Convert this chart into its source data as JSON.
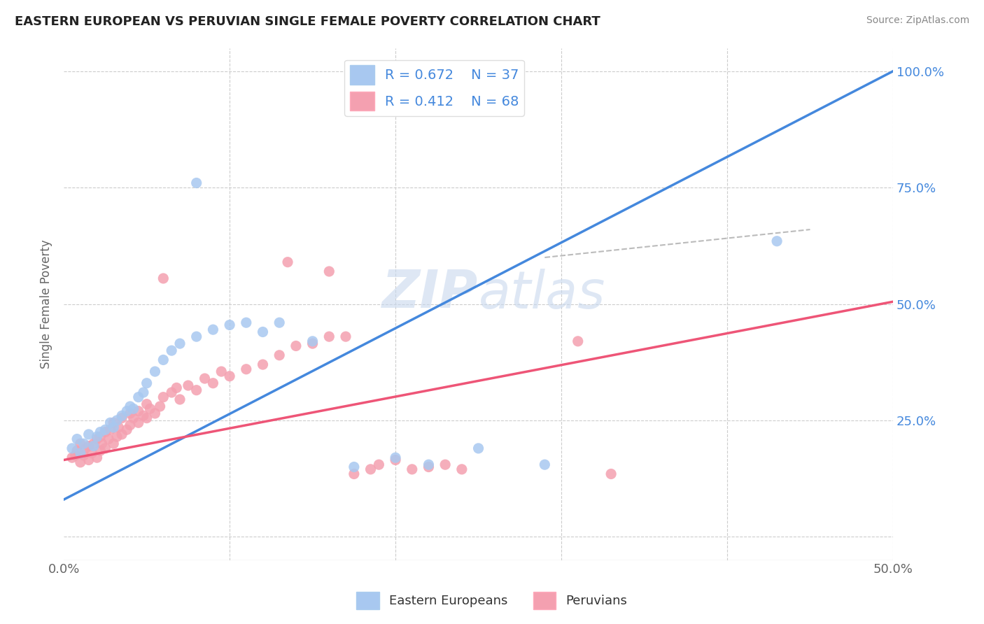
{
  "title": "EASTERN EUROPEAN VS PERUVIAN SINGLE FEMALE POVERTY CORRELATION CHART",
  "source": "Source: ZipAtlas.com",
  "ylabel": "Single Female Poverty",
  "xlim": [
    0.0,
    0.5
  ],
  "ylim": [
    -0.05,
    1.05
  ],
  "xticks": [
    0.0,
    0.1,
    0.2,
    0.3,
    0.4,
    0.5
  ],
  "xticklabels": [
    "0.0%",
    "",
    "",
    "",
    "",
    "50.0%"
  ],
  "yticks": [
    0.0,
    0.25,
    0.5,
    0.75,
    1.0
  ],
  "yticklabels": [
    "",
    "25.0%",
    "50.0%",
    "75.0%",
    "100.0%"
  ],
  "watermark": "ZIPatlas",
  "blue_color": "#A8C8F0",
  "pink_color": "#F4A0B0",
  "line_blue": "#4488DD",
  "line_pink": "#EE5577",
  "line_dashed_color": "#BBBBBB",
  "blue_scatter": [
    [
      0.005,
      0.19
    ],
    [
      0.008,
      0.21
    ],
    [
      0.01,
      0.18
    ],
    [
      0.012,
      0.2
    ],
    [
      0.015,
      0.22
    ],
    [
      0.018,
      0.195
    ],
    [
      0.02,
      0.215
    ],
    [
      0.022,
      0.225
    ],
    [
      0.025,
      0.23
    ],
    [
      0.028,
      0.245
    ],
    [
      0.03,
      0.235
    ],
    [
      0.032,
      0.25
    ],
    [
      0.035,
      0.26
    ],
    [
      0.038,
      0.27
    ],
    [
      0.04,
      0.28
    ],
    [
      0.042,
      0.275
    ],
    [
      0.045,
      0.3
    ],
    [
      0.048,
      0.31
    ],
    [
      0.05,
      0.33
    ],
    [
      0.055,
      0.355
    ],
    [
      0.06,
      0.38
    ],
    [
      0.065,
      0.4
    ],
    [
      0.07,
      0.415
    ],
    [
      0.08,
      0.43
    ],
    [
      0.09,
      0.445
    ],
    [
      0.1,
      0.455
    ],
    [
      0.11,
      0.46
    ],
    [
      0.12,
      0.44
    ],
    [
      0.13,
      0.46
    ],
    [
      0.15,
      0.42
    ],
    [
      0.175,
      0.15
    ],
    [
      0.2,
      0.17
    ],
    [
      0.22,
      0.155
    ],
    [
      0.25,
      0.19
    ],
    [
      0.29,
      0.155
    ],
    [
      0.43,
      0.635
    ],
    [
      0.08,
      0.76
    ]
  ],
  "pink_scatter": [
    [
      0.005,
      0.17
    ],
    [
      0.007,
      0.175
    ],
    [
      0.008,
      0.185
    ],
    [
      0.01,
      0.16
    ],
    [
      0.01,
      0.2
    ],
    [
      0.012,
      0.175
    ],
    [
      0.013,
      0.19
    ],
    [
      0.015,
      0.165
    ],
    [
      0.015,
      0.195
    ],
    [
      0.017,
      0.18
    ],
    [
      0.018,
      0.2
    ],
    [
      0.02,
      0.17
    ],
    [
      0.02,
      0.21
    ],
    [
      0.022,
      0.185
    ],
    [
      0.022,
      0.215
    ],
    [
      0.023,
      0.2
    ],
    [
      0.025,
      0.19
    ],
    [
      0.025,
      0.225
    ],
    [
      0.027,
      0.21
    ],
    [
      0.028,
      0.23
    ],
    [
      0.03,
      0.2
    ],
    [
      0.03,
      0.245
    ],
    [
      0.032,
      0.215
    ],
    [
      0.033,
      0.235
    ],
    [
      0.035,
      0.22
    ],
    [
      0.035,
      0.255
    ],
    [
      0.038,
      0.23
    ],
    [
      0.04,
      0.24
    ],
    [
      0.04,
      0.265
    ],
    [
      0.042,
      0.255
    ],
    [
      0.045,
      0.245
    ],
    [
      0.045,
      0.27
    ],
    [
      0.048,
      0.26
    ],
    [
      0.05,
      0.255
    ],
    [
      0.05,
      0.285
    ],
    [
      0.052,
      0.275
    ],
    [
      0.055,
      0.265
    ],
    [
      0.058,
      0.28
    ],
    [
      0.06,
      0.3
    ],
    [
      0.06,
      0.555
    ],
    [
      0.065,
      0.31
    ],
    [
      0.068,
      0.32
    ],
    [
      0.07,
      0.295
    ],
    [
      0.075,
      0.325
    ],
    [
      0.08,
      0.315
    ],
    [
      0.085,
      0.34
    ],
    [
      0.09,
      0.33
    ],
    [
      0.095,
      0.355
    ],
    [
      0.1,
      0.345
    ],
    [
      0.11,
      0.36
    ],
    [
      0.12,
      0.37
    ],
    [
      0.13,
      0.39
    ],
    [
      0.135,
      0.59
    ],
    [
      0.14,
      0.41
    ],
    [
      0.15,
      0.415
    ],
    [
      0.16,
      0.43
    ],
    [
      0.16,
      0.57
    ],
    [
      0.17,
      0.43
    ],
    [
      0.175,
      0.135
    ],
    [
      0.185,
      0.145
    ],
    [
      0.19,
      0.155
    ],
    [
      0.2,
      0.165
    ],
    [
      0.21,
      0.145
    ],
    [
      0.22,
      0.15
    ],
    [
      0.23,
      0.155
    ],
    [
      0.24,
      0.145
    ],
    [
      0.31,
      0.42
    ],
    [
      0.33,
      0.135
    ]
  ],
  "blue_line_x": [
    0.0,
    0.5
  ],
  "blue_line_y": [
    0.08,
    1.0
  ],
  "pink_line_x": [
    0.0,
    0.5
  ],
  "pink_line_y": [
    0.165,
    0.505
  ],
  "dashed_line_x": [
    0.29,
    0.45
  ],
  "dashed_line_y": [
    0.6,
    0.66
  ],
  "background_color": "#FFFFFF",
  "grid_color": "#CCCCCC"
}
